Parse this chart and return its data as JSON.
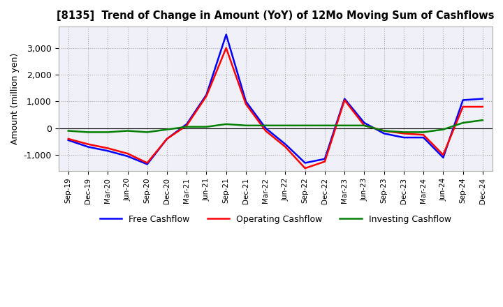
{
  "title": "[8135]  Trend of Change in Amount (YoY) of 12Mo Moving Sum of Cashflows",
  "ylabel": "Amount (million yen)",
  "x_labels": [
    "Sep-19",
    "Dec-19",
    "Mar-20",
    "Jun-20",
    "Sep-20",
    "Dec-20",
    "Mar-21",
    "Jun-21",
    "Sep-21",
    "Dec-21",
    "Mar-22",
    "Jun-22",
    "Sep-22",
    "Dec-22",
    "Mar-23",
    "Jun-23",
    "Sep-23",
    "Dec-23",
    "Mar-24",
    "Jun-24",
    "Sep-24",
    "Dec-24"
  ],
  "operating": [
    -400,
    -600,
    -750,
    -950,
    -1300,
    -400,
    100,
    1200,
    3000,
    900,
    -100,
    -700,
    -1500,
    -1250,
    1050,
    100,
    -100,
    -200,
    -250,
    -1000,
    800,
    800
  ],
  "investing": [
    -100,
    -150,
    -150,
    -100,
    -150,
    -50,
    50,
    50,
    150,
    100,
    100,
    100,
    100,
    100,
    100,
    100,
    -100,
    -150,
    -150,
    -50,
    200,
    300
  ],
  "free": [
    -450,
    -700,
    -850,
    -1050,
    -1350,
    -400,
    150,
    1250,
    3500,
    1000,
    0,
    -600,
    -1300,
    -1150,
    1100,
    200,
    -200,
    -350,
    -350,
    -1100,
    1050,
    1100
  ],
  "ylim": [
    -1600,
    3800
  ],
  "yticks": [
    -1000,
    0,
    1000,
    2000,
    3000
  ],
  "colors": {
    "operating": "#ff0000",
    "investing": "#008000",
    "free": "#0000ff"
  },
  "legend_labels": [
    "Operating Cashflow",
    "Investing Cashflow",
    "Free Cashflow"
  ],
  "background_color": "#ffffff",
  "plot_bg_color": "#f0f0f8",
  "grid_color": "#aaaaaa"
}
